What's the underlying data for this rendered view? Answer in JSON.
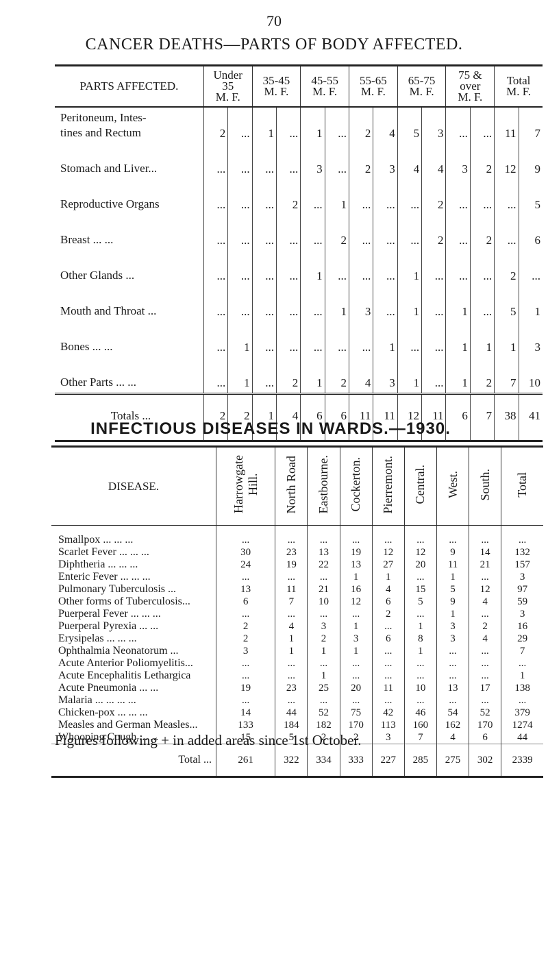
{
  "page_number": "70",
  "cancer": {
    "title": "CANCER DEATHS—PARTS OF BODY AFFECTED.",
    "header": {
      "parts": "PARTS AFFECTED.",
      "groups": [
        "Under 35",
        "35-45",
        "45-55",
        "55-65",
        "65-75",
        "75 & over",
        "Total"
      ],
      "sex": [
        "M. F.",
        "M. F.",
        "M. F.",
        "M. F.",
        "M. F.",
        "M. F.",
        "M. F."
      ]
    },
    "rows": [
      {
        "label": "Peritoneum, Intes-\ntines and Rectum",
        "cells": [
          "2",
          "...",
          "1",
          "...",
          "1",
          "...",
          "2",
          "4",
          "5",
          "3",
          "...",
          "...",
          "11",
          "7"
        ]
      },
      {
        "label": "Stomach and Liver...",
        "cells": [
          "...",
          "...",
          "...",
          "...",
          "3",
          "...",
          "2",
          "3",
          "4",
          "4",
          "3",
          "2",
          "12",
          "9"
        ]
      },
      {
        "label": "Reproductive Organs",
        "cells": [
          "...",
          "...",
          "...",
          "2",
          "...",
          "1",
          "...",
          "...",
          "...",
          "2",
          "...",
          "...",
          "...",
          "5"
        ]
      },
      {
        "label": "Breast ... ...",
        "cells": [
          "...",
          "...",
          "...",
          "...",
          "...",
          "2",
          "...",
          "...",
          "...",
          "2",
          "...",
          "2",
          "...",
          "6"
        ]
      },
      {
        "label": "Other Glands ...",
        "cells": [
          "...",
          "...",
          "...",
          "...",
          "1",
          "...",
          "...",
          "...",
          "1",
          "...",
          "...",
          "...",
          "2",
          "..."
        ]
      },
      {
        "label": "Mouth and Throat ...",
        "cells": [
          "...",
          "...",
          "...",
          "...",
          "...",
          "1",
          "3",
          "...",
          "1",
          "...",
          "1",
          "...",
          "5",
          "1"
        ]
      },
      {
        "label": "Bones ... ...",
        "cells": [
          "...",
          "1",
          "...",
          "...",
          "...",
          "...",
          "...",
          "1",
          "...",
          "...",
          "1",
          "1",
          "1",
          "3"
        ]
      },
      {
        "label": "Other Parts ... ...",
        "cells": [
          "...",
          "1",
          "...",
          "2",
          "1",
          "2",
          "4",
          "3",
          "1",
          "...",
          "1",
          "2",
          "7",
          "10"
        ]
      }
    ],
    "totals": {
      "label": "Totals ...",
      "cells": [
        "2",
        "2",
        "1",
        "4",
        "6",
        "6",
        "11",
        "11",
        "12",
        "11",
        "6",
        "7",
        "38",
        "41"
      ]
    }
  },
  "infectious": {
    "title": "INFECTIOUS DISEASES IN WARDS.—1930.",
    "header": {
      "disease": "DISEASE.",
      "columns": [
        "Harrowgate Hill.",
        "North Road",
        "Eastbourne.",
        "Cockerton.",
        "Pierremont.",
        "Central.",
        "West.",
        "South.",
        "Total"
      ]
    },
    "rows": [
      {
        "label": "Smallpox ... ... ...",
        "cells": [
          "...",
          "...",
          "...",
          "...",
          "...",
          "...",
          "...",
          "...",
          "..."
        ]
      },
      {
        "label": "Scarlet Fever ... ... ...",
        "cells": [
          "30",
          "23",
          "13",
          "19",
          "12",
          "12",
          "9",
          "14",
          "132"
        ]
      },
      {
        "label": "Diphtheria ... ... ...",
        "cells": [
          "24",
          "19",
          "22",
          "13",
          "27",
          "20",
          "11",
          "21",
          "157"
        ]
      },
      {
        "label": "Enteric Fever ... ... ...",
        "cells": [
          "...",
          "...",
          "...",
          "1",
          "1",
          "...",
          "1",
          "...",
          "3"
        ]
      },
      {
        "label": "Pulmonary Tuberculosis ...",
        "cells": [
          "13",
          "11",
          "21",
          "16",
          "4",
          "15",
          "5",
          "12",
          "97"
        ]
      },
      {
        "label": "Other forms of Tuberculosis...",
        "cells": [
          "6",
          "7",
          "10",
          "12",
          "6",
          "5",
          "9",
          "4",
          "59"
        ]
      },
      {
        "label": "Puerperal Fever ... ... ...",
        "cells": [
          "...",
          "...",
          "...",
          "...",
          "2",
          "...",
          "1",
          "...",
          "3"
        ]
      },
      {
        "label": "Puerperal Pyrexia ... ...",
        "cells": [
          "2",
          "4",
          "3",
          "1",
          "...",
          "1",
          "3",
          "2",
          "16"
        ]
      },
      {
        "label": "Erysipelas ... ... ...",
        "cells": [
          "2",
          "1",
          "2",
          "3",
          "6",
          "8",
          "3",
          "4",
          "29"
        ]
      },
      {
        "label": "Ophthalmia Neonatorum ...",
        "cells": [
          "3",
          "1",
          "1",
          "1",
          "...",
          "1",
          "...",
          "...",
          "7"
        ]
      },
      {
        "label": "Acute Anterior Poliomyelitis...",
        "cells": [
          "...",
          "...",
          "...",
          "...",
          "...",
          "...",
          "...",
          "...",
          "..."
        ]
      },
      {
        "label": "Acute Encephalitis Lethargica",
        "cells": [
          "...",
          "...",
          "1",
          "...",
          "...",
          "...",
          "...",
          "...",
          "1"
        ]
      },
      {
        "label": "Acute Pneumonia ... ...",
        "cells": [
          "19",
          "23",
          "25",
          "20",
          "11",
          "10",
          "13",
          "17",
          "138"
        ]
      },
      {
        "label": "Malaria ... ... ... ...",
        "cells": [
          "...",
          "...",
          "...",
          "...",
          "...",
          "...",
          "...",
          "...",
          "..."
        ]
      },
      {
        "label": "Chicken-pox ... ... ...",
        "cells": [
          "14",
          "44",
          "52",
          "75",
          "42",
          "46",
          "54",
          "52",
          "379"
        ]
      },
      {
        "label": "Measles and German Measles...",
        "cells": [
          "133",
          "184",
          "182",
          "170",
          "113",
          "160",
          "162",
          "170",
          "1274"
        ]
      },
      {
        "label": "Whooping Cough ... ...",
        "cells": [
          "15",
          "5",
          "2",
          "2",
          "3",
          "7",
          "4",
          "6",
          "44"
        ]
      }
    ],
    "totals": {
      "label": "Total ...",
      "cells": [
        "261",
        "322",
        "334",
        "333",
        "227",
        "285",
        "275",
        "302",
        "2339"
      ]
    }
  },
  "footnote": "Figures following + in added areas since 1st October."
}
